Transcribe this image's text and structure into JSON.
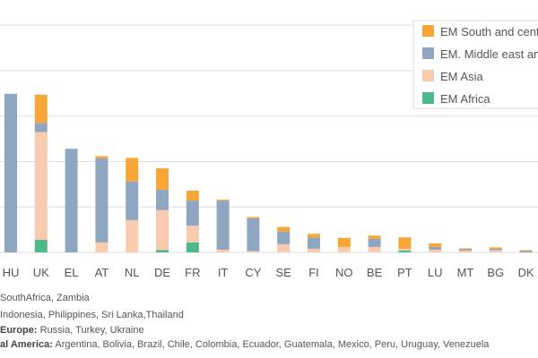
{
  "chart_data": {
    "type": "stacked-bar",
    "title": "",
    "xlabel": "",
    "ylabel": "",
    "ylim": [
      0,
      5.2
    ],
    "grid": true,
    "legend_position": "top-right",
    "categories": [
      "HU",
      "UK",
      "EL",
      "AT",
      "NL",
      "DE",
      "FR",
      "IT",
      "CY",
      "SE",
      "FI",
      "NO",
      "BE",
      "PT",
      "LU",
      "MT",
      "BG",
      "DK"
    ],
    "series": [
      {
        "name": "EM Africa",
        "color": "#4db98a",
        "values": [
          0,
          0.28,
          0,
          0,
          0,
          0.05,
          0.22,
          0,
          0,
          0,
          0,
          0,
          0,
          0.04,
          0,
          0,
          0,
          0
        ]
      },
      {
        "name": "EM Asia",
        "color": "#f8cbae",
        "values": [
          0,
          2.37,
          0,
          0.22,
          0.71,
          0.88,
          0.37,
          0.06,
          0.03,
          0.18,
          0.08,
          0.12,
          0.12,
          0.04,
          0.06,
          0.04,
          0.05,
          0
        ]
      },
      {
        "name": "EM. Middle east and Europe",
        "color": "#8ea6bf",
        "values": [
          3.49,
          0.2,
          2.28,
          1.85,
          0.85,
          0.45,
          0.55,
          1.08,
          0.72,
          0.28,
          0.25,
          0,
          0.18,
          0,
          0.06,
          0.03,
          0.03,
          0.03
        ]
      },
      {
        "name": "EM South and central America",
        "color": "#f6a737",
        "values": [
          0,
          0.62,
          0,
          0.05,
          0.52,
          0.47,
          0.22,
          0.02,
          0.03,
          0.1,
          0.08,
          0.2,
          0.07,
          0.25,
          0.08,
          0.02,
          0.03,
          0.02
        ]
      }
    ]
  },
  "legend": {
    "items": [
      {
        "label": "EM South and central America",
        "color": "#f6a737"
      },
      {
        "label": "EM. Middle east and Europe",
        "color": "#8ea6bf"
      },
      {
        "label": "EM Asia",
        "color": "#f8cbae"
      },
      {
        "label": "EM Africa",
        "color": "#4db98a"
      }
    ]
  },
  "notes": [
    {
      "prefix": "",
      "text": "SouthAfrica, Zambia"
    },
    {
      "prefix": "",
      "text": "Indonesia, Philippines, Sri Lanka,Thailand"
    },
    {
      "prefix": "Europe:",
      "text": " Russia, Turkey, Ukraine"
    },
    {
      "prefix": "al America:",
      "text": " Argentina, Bolivia, Brazil, Chile, Colombia, Ecuador, Guatemala, Mexico, Peru, Uruguay, Venezuela"
    }
  ]
}
